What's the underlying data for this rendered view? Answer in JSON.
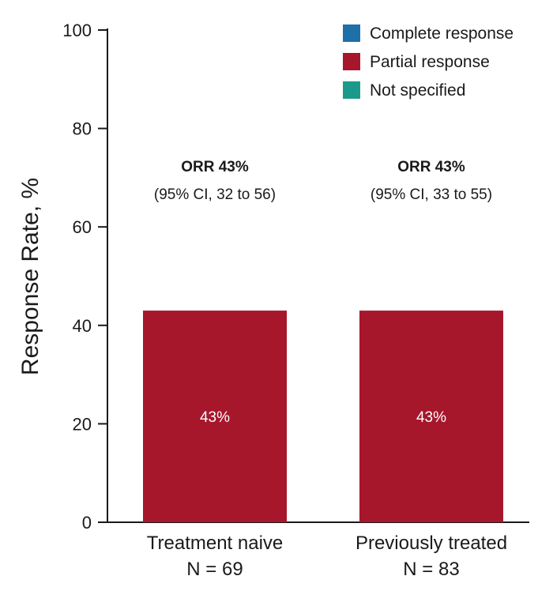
{
  "chart_data": {
    "type": "bar",
    "ylabel": "Response Rate, %",
    "ylim": [
      0,
      100
    ],
    "yticks": [
      0,
      20,
      40,
      60,
      80,
      100
    ],
    "categories": [
      {
        "name": "Treatment naive",
        "n_label": "N = 69"
      },
      {
        "name": "Previously treated",
        "n_label": "N = 83"
      }
    ],
    "series": [
      {
        "name": "Complete response",
        "color": "#1f6fa8",
        "values": [
          0,
          0
        ]
      },
      {
        "name": "Partial response",
        "color": "#a6172c",
        "values": [
          43,
          43
        ]
      },
      {
        "name": "Not specified",
        "color": "#1b9a8c",
        "values": [
          0,
          0
        ]
      }
    ],
    "bar_labels": [
      "43%",
      "43%"
    ],
    "annotations": [
      {
        "orr": "ORR 43%",
        "ci": "(95% CI, 32 to 56)"
      },
      {
        "orr": "ORR 43%",
        "ci": "(95% CI, 33 to 55)"
      }
    ],
    "legend_position": "top-right",
    "grid": false
  }
}
